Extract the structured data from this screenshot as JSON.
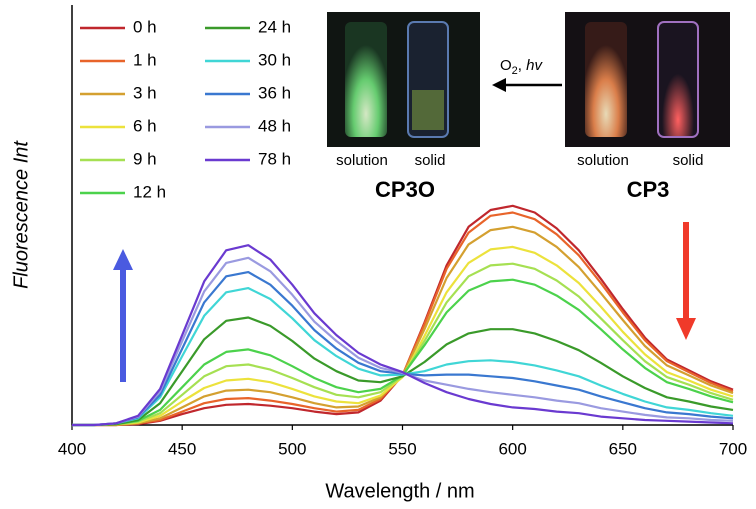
{
  "chart_data": {
    "type": "line",
    "xlabel": "Wavelength  / nm",
    "ylabel": "Fluorescence Int",
    "x": [
      400,
      410,
      420,
      430,
      440,
      450,
      460,
      470,
      480,
      490,
      500,
      510,
      520,
      530,
      540,
      550,
      560,
      570,
      580,
      590,
      600,
      610,
      620,
      630,
      640,
      650,
      660,
      670,
      680,
      690,
      700
    ],
    "xlim": [
      400,
      700
    ],
    "xticks": [
      400,
      450,
      500,
      550,
      600,
      650,
      700
    ],
    "ylim": [
      0,
      5
    ],
    "series": [
      {
        "name": "0 h",
        "color": "#c0272d",
        "values": [
          0,
          0,
          0,
          0.01,
          0.05,
          0.13,
          0.2,
          0.24,
          0.25,
          0.23,
          0.2,
          0.16,
          0.13,
          0.15,
          0.29,
          0.59,
          1.22,
          1.9,
          2.36,
          2.56,
          2.61,
          2.53,
          2.34,
          2.08,
          1.74,
          1.38,
          1.04,
          0.78,
          0.65,
          0.52,
          0.42
        ]
      },
      {
        "name": "1 h",
        "color": "#e8642a",
        "values": [
          0,
          0,
          0,
          0.02,
          0.06,
          0.16,
          0.26,
          0.31,
          0.32,
          0.29,
          0.25,
          0.2,
          0.16,
          0.18,
          0.31,
          0.59,
          1.2,
          1.86,
          2.29,
          2.49,
          2.53,
          2.45,
          2.27,
          2.02,
          1.69,
          1.34,
          1.01,
          0.76,
          0.63,
          0.5,
          0.4
        ]
      },
      {
        "name": "3 h",
        "color": "#d4a030",
        "values": [
          0,
          0,
          0,
          0.02,
          0.08,
          0.21,
          0.34,
          0.41,
          0.42,
          0.39,
          0.33,
          0.26,
          0.21,
          0.22,
          0.33,
          0.59,
          1.14,
          1.75,
          2.15,
          2.32,
          2.36,
          2.29,
          2.12,
          1.88,
          1.57,
          1.25,
          0.94,
          0.71,
          0.59,
          0.47,
          0.38
        ]
      },
      {
        "name": "6 h",
        "color": "#ece23c",
        "values": [
          0,
          0,
          0.01,
          0.03,
          0.11,
          0.28,
          0.44,
          0.53,
          0.55,
          0.51,
          0.43,
          0.34,
          0.28,
          0.26,
          0.35,
          0.57,
          1.06,
          1.58,
          1.93,
          2.09,
          2.12,
          2.05,
          1.9,
          1.69,
          1.41,
          1.11,
          0.84,
          0.63,
          0.53,
          0.42,
          0.34
        ]
      },
      {
        "name": "9 h",
        "color": "#a6e052",
        "values": [
          0,
          0,
          0.01,
          0.04,
          0.14,
          0.36,
          0.58,
          0.7,
          0.72,
          0.66,
          0.56,
          0.45,
          0.36,
          0.33,
          0.39,
          0.58,
          1.0,
          1.46,
          1.77,
          1.9,
          1.92,
          1.86,
          1.72,
          1.53,
          1.27,
          1.01,
          0.76,
          0.57,
          0.48,
          0.38,
          0.3
        ]
      },
      {
        "name": "12 h",
        "color": "#4cd24c",
        "values": [
          0,
          0,
          0.01,
          0.05,
          0.18,
          0.45,
          0.72,
          0.87,
          0.9,
          0.83,
          0.7,
          0.56,
          0.45,
          0.39,
          0.43,
          0.59,
          0.95,
          1.34,
          1.6,
          1.71,
          1.73,
          1.67,
          1.54,
          1.37,
          1.14,
          0.9,
          0.68,
          0.51,
          0.43,
          0.34,
          0.27
        ]
      },
      {
        "name": "24 h",
        "color": "#3a9a2a",
        "values": [
          0,
          0,
          0.01,
          0.06,
          0.26,
          0.64,
          1.02,
          1.24,
          1.28,
          1.18,
          1.0,
          0.79,
          0.64,
          0.53,
          0.51,
          0.58,
          0.75,
          0.96,
          1.09,
          1.14,
          1.14,
          1.09,
          1.0,
          0.89,
          0.74,
          0.58,
          0.44,
          0.33,
          0.28,
          0.22,
          0.18
        ]
      },
      {
        "name": "30 h",
        "color": "#40d6d6",
        "values": [
          0,
          0,
          0.02,
          0.08,
          0.33,
          0.82,
          1.3,
          1.58,
          1.63,
          1.5,
          1.27,
          1.01,
          0.82,
          0.67,
          0.59,
          0.6,
          0.64,
          0.72,
          0.76,
          0.77,
          0.75,
          0.71,
          0.65,
          0.58,
          0.47,
          0.37,
          0.28,
          0.21,
          0.18,
          0.14,
          0.11
        ]
      },
      {
        "name": "36 h",
        "color": "#3a78d0",
        "values": [
          0,
          0,
          0.02,
          0.09,
          0.36,
          0.91,
          1.46,
          1.77,
          1.82,
          1.67,
          1.42,
          1.13,
          0.91,
          0.74,
          0.64,
          0.61,
          0.59,
          0.6,
          0.6,
          0.58,
          0.56,
          0.52,
          0.47,
          0.42,
          0.34,
          0.27,
          0.2,
          0.15,
          0.13,
          0.1,
          0.08
        ]
      },
      {
        "name": "48 h",
        "color": "#9a9ae0",
        "values": [
          0,
          0,
          0.02,
          0.1,
          0.4,
          1.0,
          1.59,
          1.93,
          1.99,
          1.83,
          1.55,
          1.23,
          1.0,
          0.8,
          0.68,
          0.62,
          0.53,
          0.48,
          0.43,
          0.39,
          0.36,
          0.33,
          0.29,
          0.26,
          0.2,
          0.16,
          0.12,
          0.09,
          0.08,
          0.06,
          0.05
        ]
      },
      {
        "name": "78 h",
        "color": "#6a3ad0",
        "values": [
          0,
          0,
          0.02,
          0.11,
          0.43,
          1.07,
          1.71,
          2.08,
          2.14,
          1.97,
          1.67,
          1.33,
          1.07,
          0.86,
          0.72,
          0.63,
          0.5,
          0.39,
          0.31,
          0.25,
          0.21,
          0.19,
          0.16,
          0.14,
          0.1,
          0.08,
          0.06,
          0.05,
          0.04,
          0.03,
          0.02
        ]
      }
    ],
    "annotations": {
      "left_photo": {
        "labels": [
          "solution",
          "solid"
        ],
        "compound": "CP3O"
      },
      "right_photo": {
        "labels": [
          "solution",
          "solid"
        ],
        "compound": "CP3"
      },
      "reaction": {
        "reagent": "O",
        "subscript": "2",
        "separator": ", ",
        "condition": "hv"
      }
    }
  }
}
